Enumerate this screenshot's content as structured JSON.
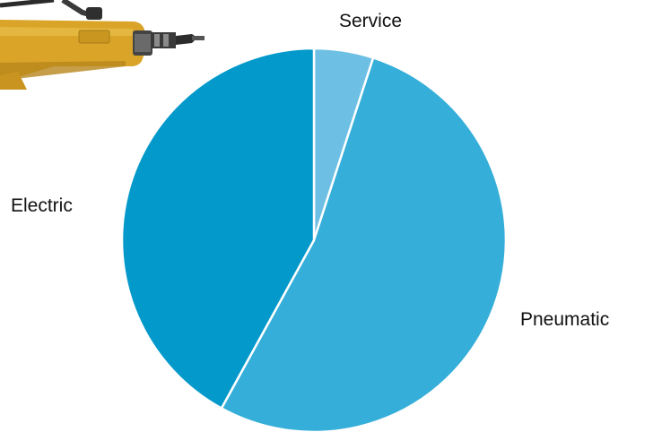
{
  "chart_data": {
    "type": "pie",
    "title": "",
    "start_angle_deg": 0,
    "direction": "clockwise",
    "slices": [
      {
        "label": "Service",
        "value": 5,
        "color": "#6dc0e4"
      },
      {
        "label": "Pneumatic",
        "value": 53,
        "color": "#35aed9"
      },
      {
        "label": "Electric",
        "value": 42,
        "color": "#0399ca"
      }
    ],
    "slice_border_color": "#ffffff",
    "legend": "none"
  },
  "decoration": {
    "tool_icon": "power-tool-illustration",
    "tool_body_color": "#d9a428",
    "tool_head_color": "#3a3a3a"
  }
}
